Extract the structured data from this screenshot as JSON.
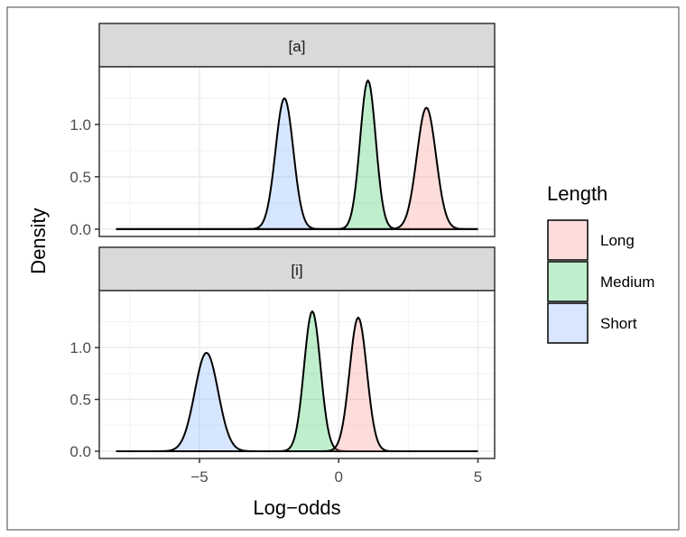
{
  "chart_data": {
    "type": "area",
    "xlabel": "Log−odds",
    "ylabel": "Density",
    "xlim": [
      -8.6,
      5.6
    ],
    "ylim": [
      -0.07,
      1.55
    ],
    "x_ticks": [
      {
        "value": -5,
        "label": "−5"
      },
      {
        "value": 0,
        "label": "0"
      },
      {
        "value": 5,
        "label": "5"
      }
    ],
    "y_ticks": [
      {
        "value": 0.0,
        "label": "0.0"
      },
      {
        "value": 0.5,
        "label": "0.5"
      },
      {
        "value": 1.0,
        "label": "1.0"
      }
    ],
    "grid": true,
    "legend": {
      "title": "Length",
      "position": "right",
      "items": [
        {
          "label": "Long",
          "color": "#F8766D"
        },
        {
          "label": "Medium",
          "color": "#00BA38"
        },
        {
          "label": "Short",
          "color": "#619CFF"
        }
      ]
    },
    "facets": [
      {
        "strip": "[a]",
        "series": [
          {
            "name": "Short",
            "color": "#619CFF",
            "x_range": [
              -8,
              5
            ],
            "mean": -1.95,
            "peak": 1.25
          },
          {
            "name": "Medium",
            "color": "#00BA38",
            "x_range": [
              -8,
              5
            ],
            "mean": 1.05,
            "peak": 1.42
          },
          {
            "name": "Long",
            "color": "#F8766D",
            "x_range": [
              -8,
              5
            ],
            "mean": 3.15,
            "peak": 1.16
          }
        ]
      },
      {
        "strip": "[i]",
        "series": [
          {
            "name": "Short",
            "color": "#619CFF",
            "x_range": [
              -8,
              5
            ],
            "mean": -4.75,
            "peak": 0.95
          },
          {
            "name": "Medium",
            "color": "#00BA38",
            "x_range": [
              -8,
              5
            ],
            "mean": -0.95,
            "peak": 1.35
          },
          {
            "name": "Long",
            "color": "#F8766D",
            "x_range": [
              -8,
              5
            ],
            "mean": 0.7,
            "peak": 1.29
          }
        ]
      }
    ]
  }
}
